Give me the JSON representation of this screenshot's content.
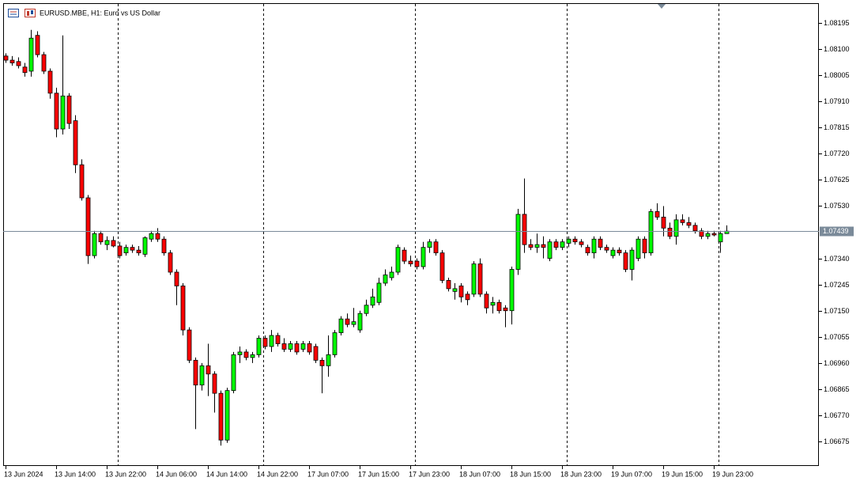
{
  "chart_data": {
    "type": "candlestick",
    "title": "EURUSD.MBE, H1:  Euro vs US Dollar",
    "categories": [
      "13 Jun 2024",
      null,
      null,
      null,
      null,
      null,
      null,
      null,
      "13 Jun 14:00",
      null,
      null,
      null,
      null,
      null,
      null,
      null,
      "13 Jun 22:00",
      null,
      null,
      null,
      null,
      null,
      null,
      null,
      "14 Jun 06:00",
      null,
      null,
      null,
      null,
      null,
      null,
      null,
      "14 Jun 14:00",
      null,
      null,
      null,
      null,
      null,
      null,
      null,
      "14 Jun 22:00",
      null,
      null,
      null,
      null,
      null,
      null,
      null,
      "17 Jun 07:00",
      null,
      null,
      null,
      null,
      null,
      null,
      null,
      "17 Jun 15:00",
      null,
      null,
      null,
      null,
      null,
      null,
      null,
      "17 Jun 23:00",
      null,
      null,
      null,
      null,
      null,
      null,
      null,
      "18 Jun 07:00",
      null,
      null,
      null,
      null,
      null,
      null,
      null,
      "18 Jun 15:00",
      null,
      null,
      null,
      null,
      null,
      null,
      null,
      "18 Jun 23:00",
      null,
      null,
      null,
      null,
      null,
      null,
      null,
      "19 Jun 07:00",
      null,
      null,
      null,
      null,
      null,
      null,
      null,
      "19 Jun 15:00",
      null,
      null,
      null,
      null,
      null,
      null,
      null,
      "19 Jun 23:00",
      null,
      null
    ],
    "open": [
      1.08075,
      1.0806,
      1.08055,
      1.08035,
      1.0802,
      1.0815,
      1.0808,
      1.0802,
      1.0794,
      1.0781,
      1.0793,
      1.0784,
      1.0768,
      1.0756,
      1.0735,
      1.0743,
      1.0739,
      1.07405,
      1.07385,
      1.0736,
      1.0738,
      1.0737,
      1.07355,
      1.0741,
      1.0743,
      1.0741,
      1.0736,
      1.0729,
      1.0724,
      1.0708,
      1.0697,
      1.0688,
      1.0695,
      1.0692,
      1.0685,
      1.0668,
      1.0686,
      1.0699,
      1.07,
      1.0698,
      1.0699,
      1.0705,
      1.0702,
      1.0706,
      1.0703,
      1.0701,
      1.0703,
      1.0701,
      1.0703,
      1.0702,
      1.0697,
      1.0695,
      1.0699,
      1.0707,
      1.0712,
      1.071,
      1.0708,
      1.0714,
      1.0717,
      1.0718,
      1.0725,
      1.0727,
      1.0729,
      1.0737,
      1.0733,
      1.0733,
      1.0731,
      1.0738,
      1.074,
      1.0736,
      1.0726,
      1.0722,
      1.0724,
      1.0721,
      1.0721,
      1.0732,
      1.0721,
      1.0717,
      1.0718,
      1.0716,
      1.0715,
      1.073,
      1.075,
      1.0739,
      1.0738,
      1.0739,
      1.0734,
      1.074,
      1.0738,
      1.07395,
      1.0741,
      1.074,
      1.0738,
      1.0736,
      1.0741,
      1.0738,
      1.0735,
      1.0737,
      1.0736,
      1.073,
      1.0734,
      1.0741,
      1.0736,
      1.0751,
      1.0749,
      1.0745,
      1.0742,
      1.0748,
      1.0747,
      1.0746,
      1.0744,
      1.0742,
      1.0743,
      1.074,
      1.0743
    ],
    "high": [
      1.08085,
      1.08075,
      1.0807,
      1.0805,
      1.0817,
      1.08165,
      1.0809,
      1.0803,
      1.0796,
      1.0815,
      1.0794,
      1.0786,
      1.077,
      1.0757,
      1.0744,
      1.0744,
      1.0742,
      1.0742,
      1.074,
      1.0739,
      1.0739,
      1.07385,
      1.0742,
      1.0744,
      1.0745,
      1.0742,
      1.0737,
      1.073,
      1.0725,
      1.0709,
      1.0698,
      1.0696,
      1.0703,
      1.0693,
      1.0686,
      1.0687,
      1.07,
      1.0702,
      1.0701,
      1.07,
      1.0706,
      1.0706,
      1.0708,
      1.0707,
      1.0705,
      1.0704,
      1.0704,
      1.0704,
      1.0704,
      1.0703,
      1.0698,
      1.0706,
      1.0708,
      1.0713,
      1.0714,
      1.0716,
      1.0715,
      1.0719,
      1.0723,
      1.0727,
      1.073,
      1.0731,
      1.0739,
      1.0738,
      1.0735,
      1.0734,
      1.074,
      1.0741,
      1.0741,
      1.0737,
      1.0727,
      1.0725,
      1.0725,
      1.0722,
      1.0733,
      1.0734,
      1.0722,
      1.072,
      1.0719,
      1.0717,
      1.0731,
      1.0752,
      1.0763,
      1.0741,
      1.0743,
      1.0742,
      1.0741,
      1.0741,
      1.0741,
      1.0742,
      1.0742,
      1.0741,
      1.0739,
      1.0742,
      1.0742,
      1.0739,
      1.0738,
      1.0738,
      1.0737,
      1.0738,
      1.0742,
      1.0742,
      1.0752,
      1.0754,
      1.0753,
      1.0747,
      1.075,
      1.075,
      1.0749,
      1.0747,
      1.0745,
      1.0744,
      1.0744,
      1.0744,
      1.0746
    ],
    "low": [
      1.0805,
      1.0804,
      1.0803,
      1.08,
      1.08,
      1.0807,
      1.0801,
      1.0792,
      1.0778,
      1.0779,
      1.0781,
      1.0765,
      1.0755,
      1.0732,
      1.0734,
      1.0739,
      1.0737,
      1.0738,
      1.0734,
      1.0735,
      1.0736,
      1.0735,
      1.07345,
      1.074,
      1.074,
      1.0735,
      1.0728,
      1.0717,
      1.0706,
      1.0696,
      1.0672,
      1.0686,
      1.0684,
      1.0678,
      1.0666,
      1.0667,
      1.0685,
      1.0696,
      1.0697,
      1.0696,
      1.0698,
      1.0701,
      1.07,
      1.0702,
      1.07,
      1.07,
      1.0699,
      1.07,
      1.0699,
      1.0696,
      1.0685,
      1.0691,
      1.0698,
      1.0706,
      1.0709,
      1.0709,
      1.0707,
      1.0713,
      1.0716,
      1.0717,
      1.0724,
      1.0726,
      1.0728,
      1.0732,
      1.0731,
      1.073,
      1.073,
      1.0736,
      1.0735,
      1.0725,
      1.0722,
      1.0719,
      1.0718,
      1.0717,
      1.072,
      1.072,
      1.0714,
      1.0714,
      1.0714,
      1.0709,
      1.071,
      1.0728,
      1.0736,
      1.0737,
      1.0736,
      1.0734,
      1.0733,
      1.0737,
      1.0737,
      1.0738,
      1.0739,
      1.0738,
      1.0735,
      1.0734,
      1.0737,
      1.0736,
      1.0734,
      1.0735,
      1.0729,
      1.0726,
      1.0733,
      1.0734,
      1.0735,
      1.0748,
      1.0742,
      1.0741,
      1.0739,
      1.0746,
      1.0745,
      1.0743,
      1.0741,
      1.0741,
      1.0742,
      1.0736,
      1.0743
    ],
    "close": [
      1.0806,
      1.0805,
      1.0804,
      1.08015,
      1.0814,
      1.0808,
      1.0802,
      1.0794,
      1.0781,
      1.0793,
      1.0783,
      1.0768,
      1.0756,
      1.0735,
      1.0743,
      1.074,
      1.07405,
      1.07385,
      1.0735,
      1.0738,
      1.0737,
      1.0736,
      1.07415,
      1.0743,
      1.0741,
      1.0736,
      1.0729,
      1.0724,
      1.0708,
      1.0697,
      1.0688,
      1.0695,
      1.0692,
      1.0685,
      1.0668,
      1.0686,
      1.0699,
      1.07,
      1.0698,
      1.0699,
      1.0705,
      1.0702,
      1.0706,
      1.0703,
      1.0701,
      1.0703,
      1.07,
      1.0703,
      1.07,
      1.0697,
      1.0695,
      1.0699,
      1.0707,
      1.0712,
      1.071,
      1.0711,
      1.0714,
      1.0717,
      1.072,
      1.0725,
      1.0728,
      1.0729,
      1.0738,
      1.0733,
      1.0732,
      1.0731,
      1.0738,
      1.074,
      1.0736,
      1.0726,
      1.0723,
      1.0723,
      1.072,
      1.0719,
      1.0732,
      1.0721,
      1.0716,
      1.0718,
      1.0715,
      1.0715,
      1.073,
      1.075,
      1.0739,
      1.0738,
      1.0739,
      1.0738,
      1.074,
      1.0738,
      1.074,
      1.0741,
      1.074,
      1.0739,
      1.0736,
      1.0741,
      1.0738,
      1.0737,
      1.0737,
      1.0736,
      1.073,
      1.0737,
      1.0741,
      1.0736,
      1.0751,
      1.0749,
      1.0745,
      1.0742,
      1.0748,
      1.0747,
      1.0746,
      1.0744,
      1.0742,
      1.0743,
      1.07425,
      1.0743,
      1.07439
    ],
    "up_color": "#00ff00",
    "down_color": "#ff0000",
    "ylim": [
      1.06586,
      1.08267
    ],
    "yticks": [
      1.08195,
      {
        "value": 1.081,
        "label": "1.08100"
      },
      1.08005,
      {
        "value": 1.0791,
        "label": "1.07910"
      },
      1.07815,
      {
        "value": 1.0772,
        "label": "1.07720"
      },
      1.07625,
      {
        "value": 1.0753,
        "label": "1.07530"
      },
      {
        "value": 1.0734,
        "label": "1.07340"
      },
      1.07245,
      {
        "value": 1.0715,
        "label": "1.07150"
      },
      1.07055,
      {
        "value": 1.0696,
        "label": "1.06960"
      },
      1.06865,
      {
        "value": 1.0677,
        "label": "1.06770"
      },
      1.06675
    ],
    "current_price": 1.07439,
    "current_price_color": "#7a8a99",
    "grid": false
  }
}
